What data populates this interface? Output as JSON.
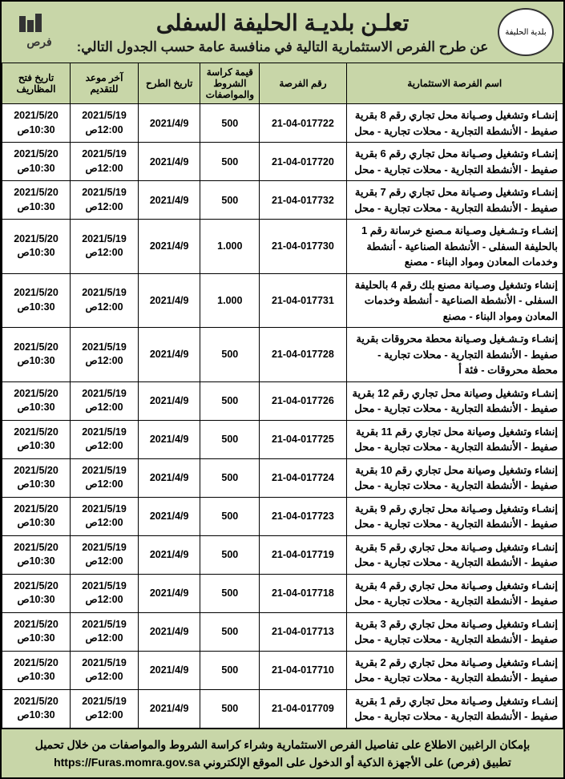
{
  "header": {
    "main_title": "تعلـن بلديـة الحليفة السفلى",
    "sub_title": "عن طرح الفرص الاستثمارية التالية في منافسة عامة حسب الجدول التالي:",
    "logo_right_text": "بلدية الحليفة",
    "logo_left_text": "فرص"
  },
  "table": {
    "columns": [
      "اسم الفرصة الاستثمارية",
      "رقم الفرصة",
      "قيمة كراسة الشروط والمواصفات",
      "تاريخ الطرح",
      "آخر موعد للتقديم",
      "تاريخ فتح المظاريف"
    ],
    "rows": [
      {
        "desc": "إنشـاء وتشغيل وصـيانة محل تجاري رقم 8 بقرية صفيط - الأنشطة التجارية - محلات تجارية - محل",
        "num": "21-04-017722",
        "price": "500",
        "date": "2021/4/9",
        "deadline": "2021/5/19 12:00ص",
        "open": "2021/5/20 10:30ص"
      },
      {
        "desc": "إنشـاء وتشغيل وصـيانة محل تجاري رقم 6 بقرية صفيط - الأنشطة التجارية - محلات تجارية - محل",
        "num": "21-04-017720",
        "price": "500",
        "date": "2021/4/9",
        "deadline": "2021/5/19 12:00ص",
        "open": "2021/5/20 10:30ص"
      },
      {
        "desc": "إنشـاء وتشغيل وصـيانة محل تجاري رقم 7 بقرية صفيط - الأنشطة التجارية - محلات تجارية - محل",
        "num": "21-04-017732",
        "price": "500",
        "date": "2021/4/9",
        "deadline": "2021/5/19 12:00ص",
        "open": "2021/5/20 10:30ص"
      },
      {
        "desc": "إنشـاء وتـشـغيل وصـيانة مـصنع خرسانة رقم 1 بالحليفة السفلى - الأنشطة الصناعية - أنشطة وخدمات المعادن ومواد البناء - مصنع",
        "num": "21-04-017730",
        "price": "1.000",
        "date": "2021/4/9",
        "deadline": "2021/5/19 12:00ص",
        "open": "2021/5/20 10:30ص"
      },
      {
        "desc": "إنشاء وتشغيل وصـيانة مصنع بلك رقم 4 بالحليفة السفلى - الأنشطة الصناعية - أنشطة وخدمات المعادن ومواد البناء - مصنع",
        "num": "21-04-017731",
        "price": "1.000",
        "date": "2021/4/9",
        "deadline": "2021/5/19 12:00ص",
        "open": "2021/5/20 10:30ص"
      },
      {
        "desc": "إنشـاء وتـشـغيل وصـيانة محطة محروقات بقرية صفيط - الأنشطة التجارية - محلات تجارية - محطة محروقات - فئة أ",
        "num": "21-04-017728",
        "price": "500",
        "date": "2021/4/9",
        "deadline": "2021/5/19 12:00ص",
        "open": "2021/5/20 10:30ص"
      },
      {
        "desc": "إنشـاء وتشغيل وصيانة محل تجاري رقم 12 بقرية صفيط - الأنشطة التجارية - محلات تجارية - محل",
        "num": "21-04-017726",
        "price": "500",
        "date": "2021/4/9",
        "deadline": "2021/5/19 12:00ص",
        "open": "2021/5/20 10:30ص"
      },
      {
        "desc": "إنشاء وتشغيل وصيانة محل تجاري رقم 11 بقرية صفيط - الأنشطة التجارية - محلات تجارية - محل",
        "num": "21-04-017725",
        "price": "500",
        "date": "2021/4/9",
        "deadline": "2021/5/19 12:00ص",
        "open": "2021/5/20 10:30ص"
      },
      {
        "desc": "إنشاء وتشغيل وصيانة محل تجاري رقم 10 بقرية صفيط - الأنشطة التجارية - محلات تجارية - محل",
        "num": "21-04-017724",
        "price": "500",
        "date": "2021/4/9",
        "deadline": "2021/5/19 12:00ص",
        "open": "2021/5/20 10:30ص"
      },
      {
        "desc": "إنشـاء وتشغيل وصـيانة محل تجاري رقم 9 بقرية صفيط - الأنشطة التجارية - محلات تجارية - محل",
        "num": "21-04-017723",
        "price": "500",
        "date": "2021/4/9",
        "deadline": "2021/5/19 12:00ص",
        "open": "2021/5/20 10:30ص"
      },
      {
        "desc": "إنشـاء وتشغيل وصـيانة محل تجاري رقم 5 بقرية صفيط - الأنشطة التجارية - محلات تجارية - محل",
        "num": "21-04-017719",
        "price": "500",
        "date": "2021/4/9",
        "deadline": "2021/5/19 12:00ص",
        "open": "2021/5/20 10:30ص"
      },
      {
        "desc": "إنشـاء وتشغيل وصـيانة محل تجاري رقم 4 بقرية صفيط - الأنشطة التجارية - محلات تجارية - محل",
        "num": "21-04-017718",
        "price": "500",
        "date": "2021/4/9",
        "deadline": "2021/5/19 12:00ص",
        "open": "2021/5/20 10:30ص"
      },
      {
        "desc": "إنشـاء وتشغيل وصـيانة محل تجاري رقم 3 بقرية صفيط - الأنشطة التجارية - محلات تجارية - محل",
        "num": "21-04-017713",
        "price": "500",
        "date": "2021/4/9",
        "deadline": "2021/5/19 12:00ص",
        "open": "2021/5/20 10:30ص"
      },
      {
        "desc": "إنشـاء وتشغيل وصـيانة محل تجاري رقم 2 بقرية صفيط - الأنشطة التجارية - محلات تجارية - محل",
        "num": "21-04-017710",
        "price": "500",
        "date": "2021/4/9",
        "deadline": "2021/5/19 12:00ص",
        "open": "2021/5/20 10:30ص"
      },
      {
        "desc": "إنشـاء وتشغيل وصـيانة محل تجاري رقم 1 بقرية صفيط - الأنشطة التجارية - محلات تجارية - محل",
        "num": "21-04-017709",
        "price": "500",
        "date": "2021/4/9",
        "deadline": "2021/5/19 12:00ص",
        "open": "2021/5/20 10:30ص"
      }
    ]
  },
  "footer": {
    "line1": "بإمكان الراغبين الاطلاع على تفاصيل الفرص الاستثمارية وشراء كراسة الشروط والمواصفات من خلال تحميل",
    "line2": "تطبيق (فرص) على الأجهزة الذكية أو الدخول على الموقع الإلكتروني",
    "url": "https://Furas.momra.gov.sa"
  },
  "colors": {
    "header_bg": "#c8d6a8",
    "border": "#000000",
    "text": "#1a1a1a"
  }
}
